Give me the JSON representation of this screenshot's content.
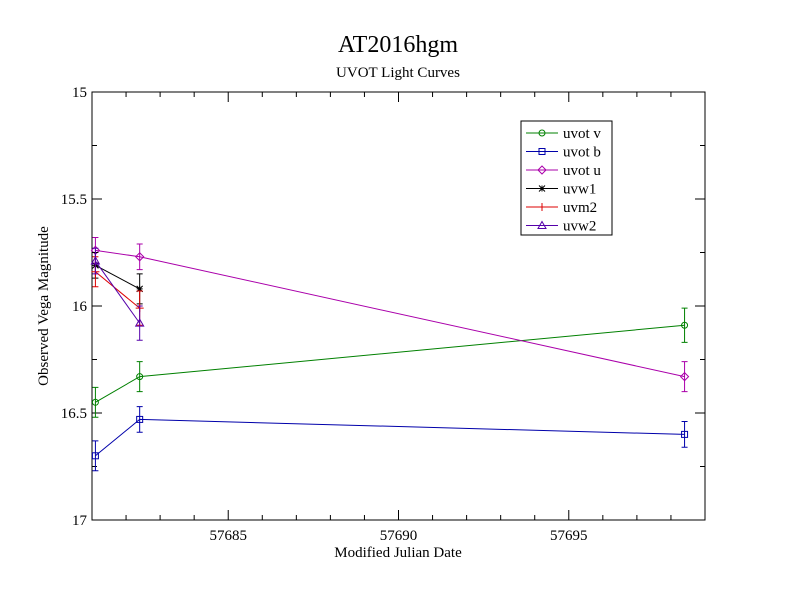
{
  "chart_data": {
    "type": "line",
    "title": "AT2016hgm",
    "subtitle": "UVOT Light Curves",
    "xlabel": "Modified Julian Date",
    "ylabel": "Observed Vega Magnitude",
    "xlim": [
      57681,
      57699
    ],
    "ylim": [
      15,
      17
    ],
    "y_inverted": true,
    "x_ticks": [
      57685,
      57690,
      57695
    ],
    "y_ticks": [
      15,
      15.5,
      16,
      16.5,
      17
    ],
    "grid": false,
    "legend_position": "top-right",
    "series": [
      {
        "name": "uvot v",
        "color": "#008000",
        "marker": "circle",
        "x": [
          57681.1,
          57682.4,
          57698.4
        ],
        "y": [
          16.45,
          16.33,
          16.09
        ],
        "err": [
          0.07,
          0.07,
          0.08
        ]
      },
      {
        "name": "uvot b",
        "color": "#0000aa",
        "marker": "square",
        "x": [
          57681.1,
          57682.4,
          57698.4
        ],
        "y": [
          16.7,
          16.53,
          16.6
        ],
        "err": [
          0.07,
          0.06,
          0.06
        ]
      },
      {
        "name": "uvot u",
        "color": "#aa00aa",
        "marker": "diamond",
        "x": [
          57681.1,
          57682.4,
          57698.4
        ],
        "y": [
          15.74,
          15.77,
          16.33
        ],
        "err": [
          0.06,
          0.06,
          0.07
        ]
      },
      {
        "name": "uvw1",
        "color": "#000000",
        "marker": "star",
        "x": [
          57681.1,
          57682.4
        ],
        "y": [
          15.81,
          15.92
        ],
        "err": [
          0.06,
          0.07
        ]
      },
      {
        "name": "uvm2",
        "color": "#dd0000",
        "marker": "plus",
        "x": [
          57681.1,
          57682.4
        ],
        "y": [
          15.84,
          16.01
        ],
        "err": [
          0.07,
          0.08
        ]
      },
      {
        "name": "uvw2",
        "color": "#5500aa",
        "marker": "triangle",
        "x": [
          57681.1,
          57682.4
        ],
        "y": [
          15.79,
          16.08
        ],
        "err": [
          0.06,
          0.08
        ]
      }
    ]
  }
}
